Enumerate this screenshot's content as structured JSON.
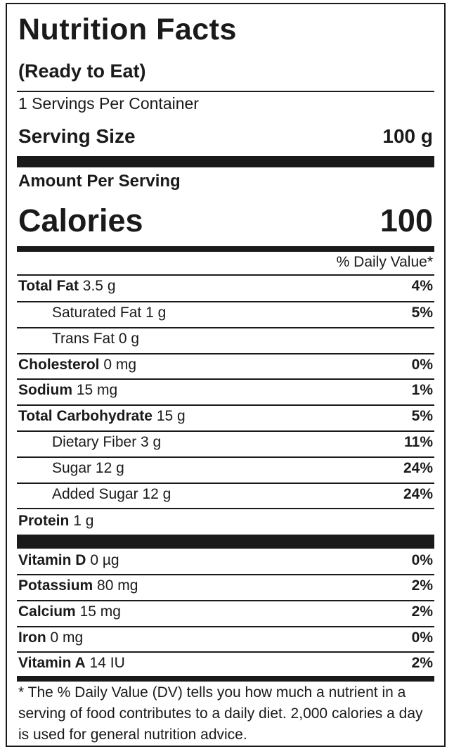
{
  "header": {
    "title": "Nutrition Facts",
    "subtitle": "(Ready to Eat)",
    "servings_per_container": "1 Servings Per Container",
    "serving_size_label": "Serving Size",
    "serving_size_value": "100 g",
    "amount_per_serving": "Amount Per Serving",
    "calories_label": "Calories",
    "calories_value": "100",
    "daily_value_header": "% Daily Value*"
  },
  "nutrients": [
    {
      "name": "Total Fat",
      "amount": "3.5 g",
      "dv": "4%"
    },
    {
      "name": "Saturated Fat",
      "amount": "1 g",
      "dv": "5%"
    },
    {
      "name": "Trans Fat",
      "amount": "0 g",
      "dv": ""
    },
    {
      "name": "Cholesterol",
      "amount": "0 mg",
      "dv": "0%"
    },
    {
      "name": "Sodium",
      "amount": "15 mg",
      "dv": "1%"
    },
    {
      "name": "Total Carbohydrate",
      "amount": "15 g",
      "dv": "5%"
    },
    {
      "name": "Dietary Fiber",
      "amount": "3 g",
      "dv": "11%"
    },
    {
      "name": "Sugar",
      "amount": "12 g",
      "dv": "24%"
    },
    {
      "name": "Added Sugar",
      "amount": "12 g",
      "dv": "24%"
    },
    {
      "name": "Protein",
      "amount": "1 g",
      "dv": ""
    }
  ],
  "vitamins": [
    {
      "name": "Vitamin D",
      "amount": "0 µg",
      "dv": "0%"
    },
    {
      "name": "Potassium",
      "amount": "80 mg",
      "dv": "2%"
    },
    {
      "name": "Calcium",
      "amount": "15 mg",
      "dv": "2%"
    },
    {
      "name": "Iron",
      "amount": "0 mg",
      "dv": "0%"
    },
    {
      "name": "Vitamin A",
      "amount": "14 IU",
      "dv": "2%"
    }
  ],
  "footnote": "* The % Daily Value (DV) tells you how much a nutrient in a serving of food contributes to a daily diet. 2,000 calories a day is used for general nutrition advice."
}
